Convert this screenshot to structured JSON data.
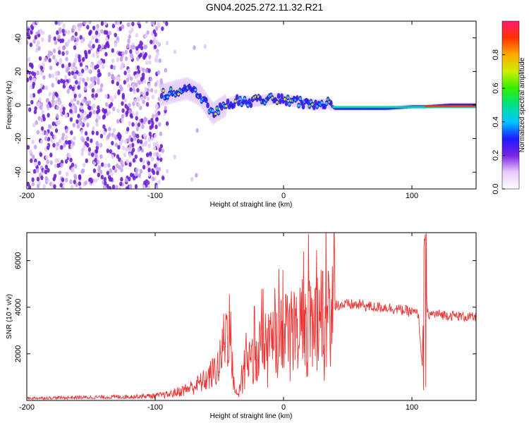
{
  "title": "GN04.2025.272.11.32.R21",
  "chart_data": [
    {
      "type": "heatmap",
      "title": "GN04.2025.272.11.32.R21",
      "xlabel": "Height of straight line (km)",
      "ylabel": "Frequency (Hz)",
      "xlim": [
        -200,
        150
      ],
      "ylim": [
        -50,
        50
      ],
      "x_ticks": [
        -200,
        -100,
        0,
        100
      ],
      "y_ticks": [
        -40,
        -20,
        0,
        20,
        40
      ],
      "colorbar": {
        "label": "Normalized spectral amplitude",
        "range": [
          0,
          1
        ],
        "ticks": [
          0.0,
          0.2,
          0.4,
          0.6,
          0.8
        ]
      },
      "ridge": {
        "x": [
          -95,
          -85,
          -75,
          -65,
          -55,
          -45,
          -35,
          -25,
          -15,
          -5,
          5,
          15,
          25,
          35,
          40,
          60,
          80,
          100,
          105,
          110,
          130,
          150
        ],
        "y": [
          6,
          8,
          10,
          6,
          -5,
          0,
          3,
          2,
          3,
          4,
          3,
          1,
          0,
          1,
          -2,
          -2,
          -2,
          -1,
          -1,
          -1,
          0,
          0
        ]
      }
    },
    {
      "type": "line",
      "xlabel": "Height of straight line (km)",
      "ylabel": "SNR (10 * v/v)",
      "xlim": [
        -200,
        150
      ],
      "ylim": [
        0,
        7200
      ],
      "x_ticks": [
        -200,
        -100,
        0,
        100
      ],
      "y_ticks": [
        2000,
        4000,
        6000
      ],
      "series": [
        {
          "name": "SNR",
          "color": "#ee3333",
          "x": [
            -200,
            -180,
            -160,
            -140,
            -120,
            -100,
            -90,
            -80,
            -70,
            -60,
            -50,
            -45,
            -42,
            -40,
            -38,
            -36,
            -33,
            -30,
            -25,
            -20,
            -15,
            -10,
            -5,
            0,
            5,
            10,
            15,
            20,
            25,
            30,
            35,
            40,
            50,
            60,
            70,
            80,
            90,
            100,
            105,
            108,
            110,
            112,
            115,
            120,
            130,
            140,
            150
          ],
          "y": [
            100,
            110,
            130,
            140,
            160,
            200,
            250,
            400,
            600,
            900,
            1500,
            3000,
            3300,
            1500,
            500,
            200,
            800,
            1500,
            2000,
            2200,
            2500,
            2600,
            2800,
            3000,
            3200,
            3300,
            3400,
            3500,
            3600,
            3800,
            4000,
            4100,
            4100,
            4100,
            4000,
            4000,
            3900,
            3800,
            3700,
            1500,
            6900,
            3700,
            3700,
            3700,
            3650,
            3600,
            3550
          ]
        }
      ]
    }
  ]
}
